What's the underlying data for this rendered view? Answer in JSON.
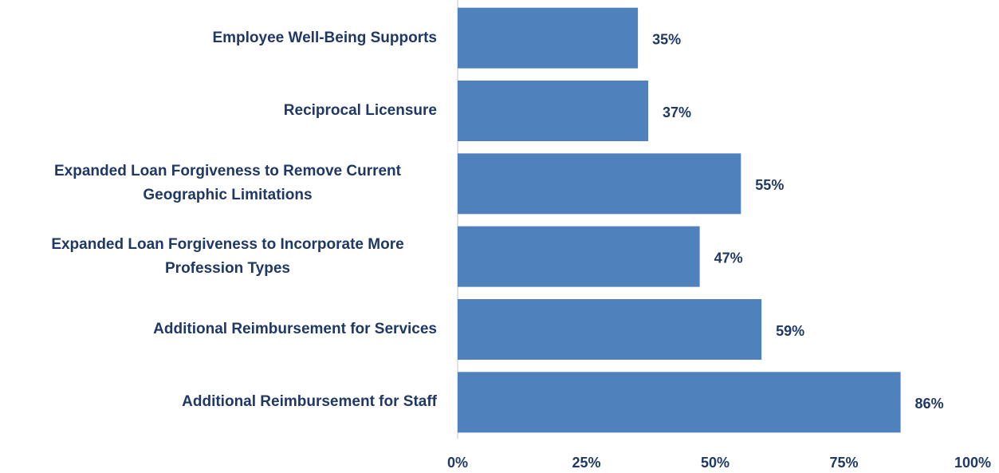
{
  "chart_data": {
    "type": "barh",
    "categories": [
      "Employee Well-Being Supports",
      "Reciprocal Licensure",
      "Expanded Loan Forgiveness to Remove Current Geographic Limitations",
      "Expanded Loan Forgiveness to Incorporate More Profession Types",
      "Additional Reimbursement for Services",
      "Additional Reimbursement for Staff"
    ],
    "values": [
      35,
      37,
      55,
      47,
      59,
      86
    ],
    "value_labels": [
      "35%",
      "37%",
      "55%",
      "47%",
      "59%",
      "86%"
    ],
    "color": "#4f81bd",
    "xlim": [
      0,
      100
    ],
    "xticks": [
      {
        "value": 0,
        "label": "0%"
      },
      {
        "value": 25,
        "label": "25%"
      },
      {
        "value": 50,
        "label": "50%"
      },
      {
        "value": 75,
        "label": "75%"
      },
      {
        "value": 100,
        "label": "100%"
      }
    ],
    "grid": false
  }
}
